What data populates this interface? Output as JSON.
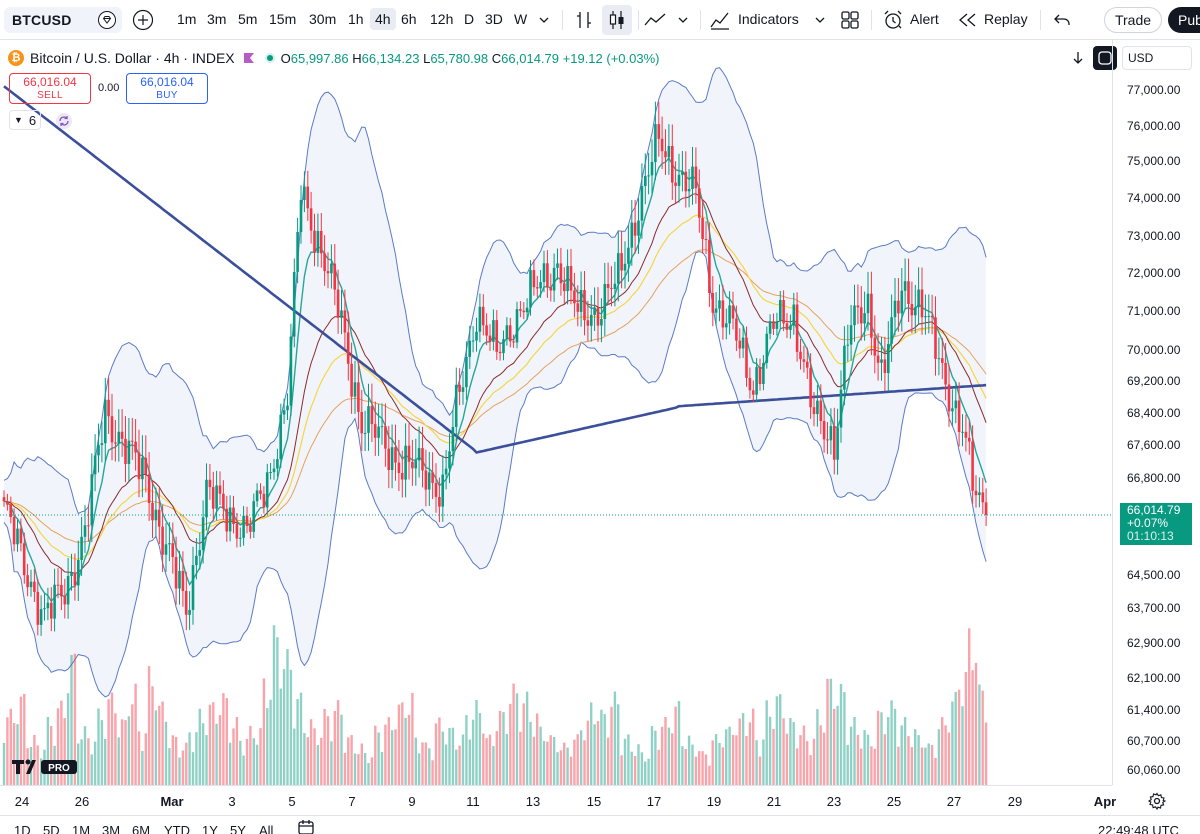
{
  "toolbar": {
    "symbol": "BTCUSD",
    "timeframes": [
      "1m",
      "3m",
      "5m",
      "15m",
      "30m",
      "1h",
      "4h",
      "6h",
      "12h",
      "D",
      "3D",
      "W"
    ],
    "active_timeframe": "4h",
    "indicators_label": "Indicators",
    "alert_label": "Alert",
    "replay_label": "Replay",
    "trade_label": "Trade",
    "publish_label": "Pub"
  },
  "legend": {
    "title": "Bitcoin / U.S. Dollar · 4h · INDEX",
    "o_key": "O",
    "o": "65,997.86",
    "h_key": "H",
    "h": "66,134.23",
    "l_key": "L",
    "l": "65,780.98",
    "c_key": "C",
    "c": "66,014.79",
    "change": "+19.12 (+0.03%)",
    "sell_price": "66,016.04",
    "sell_label": "SELL",
    "buy_price": "66,016.04",
    "buy_label": "BUY",
    "spread": "0.00",
    "indicator_count": "6"
  },
  "currency": "USD",
  "price_axis": {
    "ticks": [
      "77,000.00",
      "76,000.00",
      "75,000.00",
      "74,000.00",
      "73,000.00",
      "72,000.00",
      "71,000.00",
      "70,000.00",
      "69,200.00",
      "68,400.00",
      "67,600.00",
      "66,800.00",
      "64,500.00",
      "63,700.00",
      "62,900.00",
      "62,100.00",
      "61,400.00",
      "60,700.00",
      "60,060.00"
    ],
    "last_price": "66,014.79",
    "last_change": "+0.07%",
    "countdown": "01:10:13"
  },
  "time_axis": {
    "labels": [
      "24",
      "26",
      "Mar",
      "3",
      "5",
      "7",
      "9",
      "11",
      "13",
      "15",
      "17",
      "19",
      "21",
      "23",
      "25",
      "27",
      "29",
      "Apr"
    ]
  },
  "bottom": {
    "ranges": [
      "1D",
      "5D",
      "1M",
      "3M",
      "6M",
      "YTD",
      "1Y",
      "5Y",
      "All"
    ],
    "clock": "22:49:48 UTC"
  },
  "logo_text": "PRO",
  "colors": {
    "up": "#089981",
    "down": "#f23645",
    "ma_slow": "#3b4f9b",
    "band": "#5b7bc7",
    "ma_fast": "#26a69a",
    "ma_yellow": "#f5d547",
    "ma_orange": "#e8a05c",
    "ma_dark": "#8b2a2a"
  },
  "chart_data": {
    "type": "candlestick",
    "symbol": "BTCUSD",
    "interval": "4h",
    "ylim": [
      59600,
      77300
    ],
    "x_labels": [
      "24",
      "26",
      "Mar",
      "3",
      "5",
      "7",
      "9",
      "11",
      "13",
      "15",
      "17",
      "19",
      "21",
      "23",
      "25",
      "27",
      "29",
      "Apr"
    ],
    "close_path": [
      [
        0,
        66200
      ],
      [
        6,
        64800
      ],
      [
        12,
        63600
      ],
      [
        18,
        64200
      ],
      [
        24,
        65600
      ],
      [
        30,
        68500
      ],
      [
        36,
        67600
      ],
      [
        42,
        66900
      ],
      [
        48,
        65200
      ],
      [
        54,
        63800
      ],
      [
        60,
        66500
      ],
      [
        66,
        66100
      ],
      [
        72,
        65600
      ],
      [
        78,
        66800
      ],
      [
        84,
        68800
      ],
      [
        88,
        73800
      ],
      [
        94,
        72300
      ],
      [
        100,
        70600
      ],
      [
        106,
        68200
      ],
      [
        112,
        67800
      ],
      [
        118,
        67200
      ],
      [
        124,
        67100
      ],
      [
        130,
        66600
      ],
      [
        134,
        68500
      ],
      [
        140,
        70900
      ],
      [
        146,
        69800
      ],
      [
        152,
        70800
      ],
      [
        158,
        71400
      ],
      [
        164,
        72000
      ],
      [
        170,
        70800
      ],
      [
        176,
        70900
      ],
      [
        182,
        71600
      ],
      [
        188,
        73400
      ],
      [
        194,
        74900
      ],
      [
        200,
        74100
      ],
      [
        205,
        73600
      ],
      [
        210,
        71200
      ],
      [
        216,
        70400
      ],
      [
        222,
        69100
      ],
      [
        228,
        70500
      ],
      [
        234,
        70800
      ],
      [
        240,
        68300
      ],
      [
        246,
        67800
      ],
      [
        250,
        70300
      ],
      [
        256,
        71000
      ],
      [
        260,
        69400
      ],
      [
        266,
        71300
      ],
      [
        272,
        71100
      ],
      [
        278,
        69300
      ],
      [
        284,
        68200
      ],
      [
        288,
        66300
      ],
      [
        291,
        66015
      ]
    ],
    "volume_profile": [
      0.45,
      0.55,
      0.3,
      0.25,
      0.4,
      0.5,
      0.8,
      0.35,
      0.3,
      0.45,
      0.55,
      0.4,
      0.6,
      0.35,
      0.7,
      0.5,
      0.3,
      0.25,
      0.35,
      0.45,
      0.5,
      0.55,
      0.4,
      0.3,
      0.35,
      0.65,
      0.95,
      0.8,
      0.55,
      0.4,
      0.35,
      0.45,
      0.5,
      0.3,
      0.25,
      0.2,
      0.35,
      0.4,
      0.5,
      0.55,
      0.3,
      0.25,
      0.4,
      0.35,
      0.3,
      0.45,
      0.5,
      0.3,
      0.45,
      0.6,
      0.55,
      0.45,
      0.35,
      0.3,
      0.25,
      0.3,
      0.4,
      0.5,
      0.45,
      0.55,
      0.3,
      0.25,
      0.2,
      0.35,
      0.4,
      0.5,
      0.3,
      0.25,
      0.2,
      0.3,
      0.35,
      0.4,
      0.45,
      0.3,
      0.5,
      0.55,
      0.4,
      0.35,
      0.3,
      0.45,
      0.65,
      0.6,
      0.4,
      0.35,
      0.3,
      0.45,
      0.5,
      0.4,
      0.35,
      0.3,
      0.25,
      0.4,
      0.55,
      0.7,
      0.95,
      0.6
    ]
  }
}
